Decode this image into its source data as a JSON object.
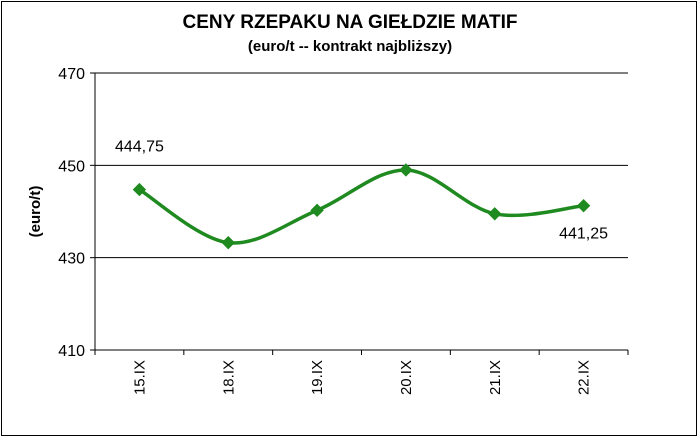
{
  "chart_data": {
    "type": "line",
    "title": "CENY RZEPAKU NA GIEŁDZIE MATIF",
    "subtitle": "(euro/t -- kontrakt najbliższy)",
    "xlabel": "",
    "ylabel": "(euro/t)",
    "categories": [
      "15.IX",
      "18.IX",
      "19.IX",
      "20.IX",
      "21.IX",
      "22.IX"
    ],
    "series": [
      {
        "values": [
          444.75,
          433.25,
          440.25,
          449.0,
          439.5,
          441.25
        ],
        "color": "#1f8a1f"
      }
    ],
    "ylim": [
      410,
      470
    ],
    "yticks": [
      410,
      430,
      450,
      470
    ],
    "grid": true,
    "data_labels": [
      {
        "index": 0,
        "text": "444,75"
      },
      {
        "index": 5,
        "text": "441,25"
      }
    ]
  }
}
